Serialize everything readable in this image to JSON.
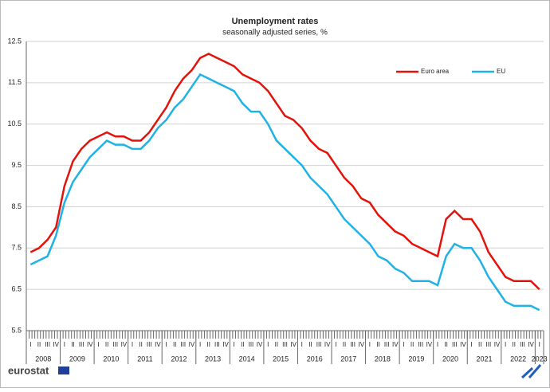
{
  "chart_data": {
    "type": "line",
    "title": "Unemployment rates",
    "subtitle": "seasonally adjusted series, %",
    "logo": "eurostat",
    "categories": [
      "I",
      "II",
      "III",
      "IV",
      "I",
      "II",
      "III",
      "IV",
      "I",
      "II",
      "III",
      "IV",
      "I",
      "II",
      "III",
      "IV",
      "I",
      "II",
      "III",
      "IV",
      "I",
      "II",
      "III",
      "IV",
      "I",
      "II",
      "III",
      "IV",
      "I",
      "II",
      "III",
      "IV",
      "I",
      "II",
      "III",
      "IV",
      "I",
      "II",
      "III",
      "IV",
      "I",
      "II",
      "III",
      "IV",
      "I",
      "II",
      "III",
      "IV",
      "I",
      "II",
      "III",
      "IV",
      "I",
      "II",
      "III",
      "IV",
      "I",
      "II",
      "III",
      "IV",
      "I"
    ],
    "years": [
      "2008",
      "2009",
      "2010",
      "2011",
      "2012",
      "2013",
      "2014",
      "2015",
      "2016",
      "2017",
      "2018",
      "2019",
      "2020",
      "2021",
      "2022",
      "2023"
    ],
    "series": [
      {
        "name": "Euro area",
        "color": "#e3120b",
        "values": [
          7.4,
          7.5,
          7.7,
          8.0,
          9.0,
          9.6,
          9.9,
          10.1,
          10.2,
          10.3,
          10.2,
          10.2,
          10.1,
          10.1,
          10.3,
          10.6,
          10.9,
          11.3,
          11.6,
          11.8,
          12.1,
          12.2,
          12.1,
          12.0,
          11.9,
          11.7,
          11.6,
          11.5,
          11.3,
          11.0,
          10.7,
          10.6,
          10.4,
          10.1,
          9.9,
          9.8,
          9.5,
          9.2,
          9.0,
          8.7,
          8.6,
          8.3,
          8.1,
          7.9,
          7.8,
          7.6,
          7.5,
          7.4,
          7.3,
          8.2,
          8.4,
          8.2,
          8.2,
          7.9,
          7.4,
          7.1,
          6.8,
          6.7,
          6.7,
          6.7,
          6.5
        ]
      },
      {
        "name": "EU",
        "color": "#1fb2e6",
        "values": [
          7.1,
          7.2,
          7.3,
          7.8,
          8.6,
          9.1,
          9.4,
          9.7,
          9.9,
          10.1,
          10.0,
          10.0,
          9.9,
          9.9,
          10.1,
          10.4,
          10.6,
          10.9,
          11.1,
          11.4,
          11.7,
          11.6,
          11.5,
          11.4,
          11.3,
          11.0,
          10.8,
          10.8,
          10.5,
          10.1,
          9.9,
          9.7,
          9.5,
          9.2,
          9.0,
          8.8,
          8.5,
          8.2,
          8.0,
          7.8,
          7.6,
          7.3,
          7.2,
          7.0,
          6.9,
          6.7,
          6.7,
          6.7,
          6.6,
          7.3,
          7.6,
          7.5,
          7.5,
          7.2,
          6.8,
          6.5,
          6.2,
          6.1,
          6.1,
          6.1,
          6.0
        ]
      }
    ],
    "ylim": [
      5.5,
      12.5
    ],
    "yticks": [
      5.5,
      6.5,
      7.5,
      8.5,
      9.5,
      10.5,
      11.5,
      12.5
    ],
    "grid": true,
    "legend": "upper right"
  }
}
